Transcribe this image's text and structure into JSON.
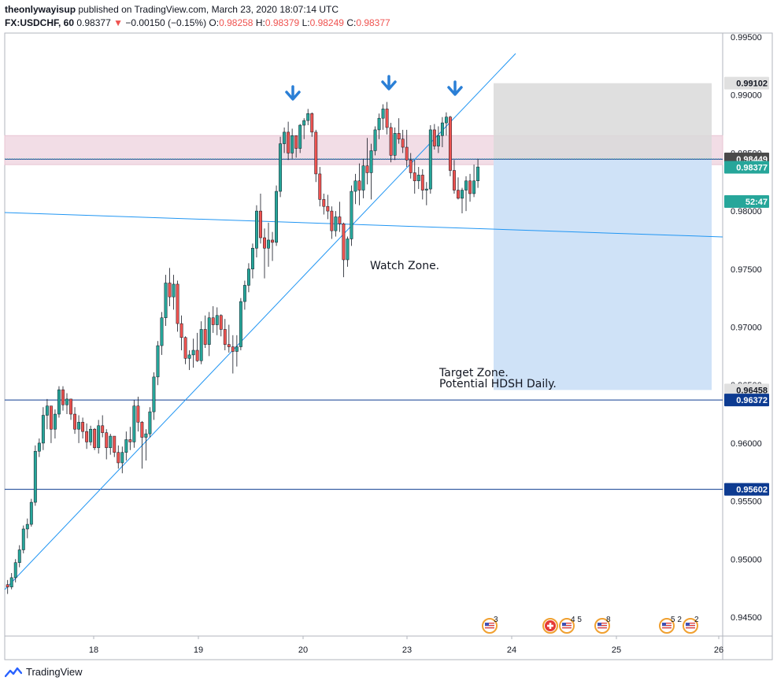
{
  "header": {
    "author": "theonlywayisup",
    "published": "published on TradingView.com, March 23, 2020 18:07:14 UTC",
    "symbol": "FX:USDCHF, 60",
    "last": "0.98377",
    "change": "−0.00150 (−0.15%)",
    "open_label": "O:",
    "open": "0.98258",
    "high_label": "H:",
    "high": "0.98379",
    "low_label": "L:",
    "low": "0.98249",
    "close_label": "C:",
    "close": "0.98377"
  },
  "footer": {
    "brand": "TradingView"
  },
  "colors": {
    "up": "#26a69a",
    "down": "#ef5350",
    "trendline": "#2196f3",
    "hline": "#0d3b91",
    "resist_zone": "#f2dde6",
    "stop_zone": "#d9d9d9",
    "target_zone": "#cfe2f7"
  },
  "chart_data": {
    "type": "candlestick",
    "ylim": [
      0.944,
      0.997
    ],
    "y_ticks": [
      "0.99500",
      "0.99000",
      "0.98500",
      "0.98000",
      "0.97500",
      "0.97000",
      "0.96500",
      "0.96000",
      "0.95500",
      "0.95000",
      "0.94500"
    ],
    "x_ticks": [
      "18",
      "19",
      "20",
      "23",
      "24",
      "25",
      "26"
    ],
    "price_labels": [
      {
        "text": "0.99102",
        "value": 0.99102,
        "bg": "#e0e0e0",
        "fg": "#131722"
      },
      {
        "text": "0.98447",
        "value": 0.98447,
        "bg": "#0d3b91",
        "fg": "#ffffff"
      },
      {
        "text": "0.98449",
        "value": 0.98449,
        "bg": "#4a4a4a",
        "fg": "#ffffff"
      },
      {
        "text": "0.98377",
        "value": 0.98377,
        "bg": "#26a69a",
        "fg": "#ffffff"
      },
      {
        "text": "52:47",
        "value": 0.9826,
        "bg": "#26a69a",
        "fg": "#ffffff"
      },
      {
        "text": "0.96458",
        "value": 0.96458,
        "bg": "#e0e0e0",
        "fg": "#131722"
      },
      {
        "text": "0.96372",
        "value": 0.96372,
        "bg": "#0d3b91",
        "fg": "#ffffff"
      },
      {
        "text": "0.95602",
        "value": 0.95602,
        "bg": "#0d3b91",
        "fg": "#ffffff"
      }
    ],
    "horizontal_lines": [
      0.98447,
      0.96372,
      0.95602
    ],
    "zones": {
      "resistance": [
        0.984,
        0.9865
      ],
      "stop": [
        0.98447,
        0.99102
      ],
      "target": [
        0.96458,
        0.98447
      ]
    },
    "annotations": [
      "Watch Zone.",
      "Target Zone.",
      "Potential HDSH Daily."
    ],
    "event_badges": [
      "3",
      "4 5",
      "8",
      "5 2",
      "2"
    ],
    "candles": [
      [
        0.9478,
        0.9482,
        0.947,
        0.9476
      ],
      [
        0.9476,
        0.9488,
        0.9474,
        0.9484
      ],
      [
        0.9484,
        0.95,
        0.948,
        0.9497
      ],
      [
        0.9497,
        0.9512,
        0.9493,
        0.9508
      ],
      [
        0.9508,
        0.9529,
        0.9505,
        0.9526
      ],
      [
        0.9526,
        0.9535,
        0.9518,
        0.953
      ],
      [
        0.953,
        0.9552,
        0.9528,
        0.9549
      ],
      [
        0.9549,
        0.9598,
        0.9546,
        0.9593
      ],
      [
        0.9593,
        0.9604,
        0.9588,
        0.96
      ],
      [
        0.96,
        0.9631,
        0.9594,
        0.9624
      ],
      [
        0.9624,
        0.9638,
        0.9612,
        0.9632
      ],
      [
        0.9632,
        0.963,
        0.96,
        0.9612
      ],
      [
        0.9612,
        0.9629,
        0.9604,
        0.9625
      ],
      [
        0.9625,
        0.9649,
        0.9622,
        0.9646
      ],
      [
        0.9646,
        0.9649,
        0.9628,
        0.9633
      ],
      [
        0.9633,
        0.9643,
        0.9625,
        0.9638
      ],
      [
        0.9638,
        0.9638,
        0.962,
        0.9625
      ],
      [
        0.9625,
        0.9631,
        0.9608,
        0.9612
      ],
      [
        0.9612,
        0.9624,
        0.96,
        0.9618
      ],
      [
        0.9618,
        0.9622,
        0.9604,
        0.961
      ],
      [
        0.961,
        0.9617,
        0.9595,
        0.9601
      ],
      [
        0.9601,
        0.9615,
        0.9598,
        0.9612
      ],
      [
        0.9612,
        0.9613,
        0.9594,
        0.9596
      ],
      [
        0.9596,
        0.962,
        0.9591,
        0.9615
      ],
      [
        0.9615,
        0.9624,
        0.9605,
        0.9609
      ],
      [
        0.9609,
        0.9612,
        0.9586,
        0.9596
      ],
      [
        0.9596,
        0.9608,
        0.959,
        0.9606
      ],
      [
        0.9606,
        0.9606,
        0.9588,
        0.9592
      ],
      [
        0.9592,
        0.9598,
        0.9578,
        0.9583
      ],
      [
        0.9583,
        0.9597,
        0.9574,
        0.9592
      ],
      [
        0.9592,
        0.961,
        0.9585,
        0.9603
      ],
      [
        0.9603,
        0.9614,
        0.9594,
        0.9601
      ],
      [
        0.9601,
        0.9637,
        0.9596,
        0.9632
      ],
      [
        0.9632,
        0.964,
        0.961,
        0.9618
      ],
      [
        0.9618,
        0.9619,
        0.9578,
        0.9605
      ],
      [
        0.9605,
        0.9612,
        0.9585,
        0.9608
      ],
      [
        0.9608,
        0.9631,
        0.9605,
        0.9627
      ],
      [
        0.9627,
        0.9661,
        0.962,
        0.9657
      ],
      [
        0.9657,
        0.9688,
        0.965,
        0.9684
      ],
      [
        0.9684,
        0.9713,
        0.9676,
        0.9708
      ],
      [
        0.9708,
        0.9745,
        0.9701,
        0.9738
      ],
      [
        0.9738,
        0.9751,
        0.9718,
        0.9726
      ],
      [
        0.9726,
        0.9745,
        0.9715,
        0.9737
      ],
      [
        0.9737,
        0.974,
        0.9696,
        0.9703
      ],
      [
        0.9703,
        0.971,
        0.968,
        0.9691
      ],
      [
        0.9691,
        0.9692,
        0.9668,
        0.9673
      ],
      [
        0.9673,
        0.968,
        0.9663,
        0.9676
      ],
      [
        0.9676,
        0.969,
        0.9665,
        0.968
      ],
      [
        0.968,
        0.9695,
        0.967,
        0.9671
      ],
      [
        0.9671,
        0.9705,
        0.9668,
        0.9698
      ],
      [
        0.9698,
        0.971,
        0.9682,
        0.9685
      ],
      [
        0.9685,
        0.9713,
        0.9675,
        0.9708
      ],
      [
        0.9708,
        0.9718,
        0.9695,
        0.9702
      ],
      [
        0.9702,
        0.9717,
        0.9693,
        0.971
      ],
      [
        0.971,
        0.9711,
        0.9692,
        0.9698
      ],
      [
        0.9698,
        0.9707,
        0.968,
        0.9685
      ],
      [
        0.9685,
        0.9702,
        0.9678,
        0.9683
      ],
      [
        0.9683,
        0.9693,
        0.966,
        0.9679
      ],
      [
        0.9679,
        0.9693,
        0.9666,
        0.9683
      ],
      [
        0.9683,
        0.9725,
        0.968,
        0.9722
      ],
      [
        0.9722,
        0.974,
        0.9715,
        0.9736
      ],
      [
        0.9736,
        0.9755,
        0.973,
        0.975
      ],
      [
        0.975,
        0.9772,
        0.9742,
        0.9768
      ],
      [
        0.9768,
        0.9805,
        0.976,
        0.98
      ],
      [
        0.98,
        0.9815,
        0.9772,
        0.9777
      ],
      [
        0.9777,
        0.9785,
        0.9742,
        0.9768
      ],
      [
        0.9768,
        0.979,
        0.9752,
        0.9775
      ],
      [
        0.9775,
        0.9782,
        0.9757,
        0.9773
      ],
      [
        0.9773,
        0.9822,
        0.977,
        0.9817
      ],
      [
        0.9817,
        0.9864,
        0.9812,
        0.9858
      ],
      [
        0.9858,
        0.9872,
        0.985,
        0.9868
      ],
      [
        0.9868,
        0.9877,
        0.9844,
        0.985
      ],
      [
        0.985,
        0.9871,
        0.9845,
        0.9865
      ],
      [
        0.9865,
        0.9864,
        0.9846,
        0.9854
      ],
      [
        0.9854,
        0.9875,
        0.985,
        0.9874
      ],
      [
        0.9874,
        0.988,
        0.9862,
        0.9878
      ],
      [
        0.9878,
        0.9888,
        0.9874,
        0.9884
      ],
      [
        0.9884,
        0.9885,
        0.9864,
        0.9868
      ],
      [
        0.9868,
        0.987,
        0.9825,
        0.9832
      ],
      [
        0.9832,
        0.9838,
        0.9804,
        0.981
      ],
      [
        0.981,
        0.9815,
        0.9797,
        0.9804
      ],
      [
        0.9804,
        0.9814,
        0.9793,
        0.98
      ],
      [
        0.98,
        0.9804,
        0.9776,
        0.9783
      ],
      [
        0.9783,
        0.98,
        0.9778,
        0.9795
      ],
      [
        0.9795,
        0.9808,
        0.9782,
        0.9789
      ],
      [
        0.9789,
        0.979,
        0.9743,
        0.9758
      ],
      [
        0.9758,
        0.9778,
        0.9752,
        0.9776
      ],
      [
        0.9776,
        0.9822,
        0.977,
        0.9817
      ],
      [
        0.9817,
        0.9832,
        0.9806,
        0.9826
      ],
      [
        0.9826,
        0.9841,
        0.9805,
        0.9818
      ],
      [
        0.9818,
        0.9845,
        0.9811,
        0.9839
      ],
      [
        0.9839,
        0.9863,
        0.9823,
        0.9833
      ],
      [
        0.9833,
        0.9858,
        0.981,
        0.9852
      ],
      [
        0.9852,
        0.9873,
        0.9848,
        0.987
      ],
      [
        0.987,
        0.9884,
        0.9862,
        0.988
      ],
      [
        0.988,
        0.9892,
        0.987,
        0.9888
      ],
      [
        0.9888,
        0.9894,
        0.9866,
        0.9872
      ],
      [
        0.9872,
        0.9876,
        0.9842,
        0.9848
      ],
      [
        0.9848,
        0.9872,
        0.9844,
        0.9867
      ],
      [
        0.9867,
        0.988,
        0.9858,
        0.9862
      ],
      [
        0.9862,
        0.987,
        0.985,
        0.9855
      ],
      [
        0.9855,
        0.987,
        0.9838,
        0.9844
      ],
      [
        0.9844,
        0.985,
        0.9828,
        0.9833
      ],
      [
        0.9833,
        0.9844,
        0.9815,
        0.9826
      ],
      [
        0.9826,
        0.9838,
        0.9819,
        0.9831
      ],
      [
        0.9831,
        0.9836,
        0.981,
        0.9818
      ],
      [
        0.9818,
        0.9825,
        0.9805,
        0.9819
      ],
      [
        0.9819,
        0.9874,
        0.9815,
        0.987
      ],
      [
        0.987,
        0.9875,
        0.9853,
        0.9856
      ],
      [
        0.9856,
        0.9873,
        0.985,
        0.9865
      ],
      [
        0.9865,
        0.9881,
        0.9855,
        0.9876
      ],
      [
        0.9876,
        0.9885,
        0.9865,
        0.9881
      ],
      [
        0.9881,
        0.9882,
        0.983,
        0.9835
      ],
      [
        0.9835,
        0.9844,
        0.9815,
        0.9818
      ],
      [
        0.9818,
        0.9829,
        0.981,
        0.9811
      ],
      [
        0.9811,
        0.982,
        0.9798,
        0.9818
      ],
      [
        0.9818,
        0.983,
        0.98,
        0.9826
      ],
      [
        0.9826,
        0.9832,
        0.9808,
        0.9815
      ],
      [
        0.9815,
        0.984,
        0.9812,
        0.9826
      ],
      [
        0.9826,
        0.9845,
        0.982,
        0.9838
      ]
    ]
  }
}
